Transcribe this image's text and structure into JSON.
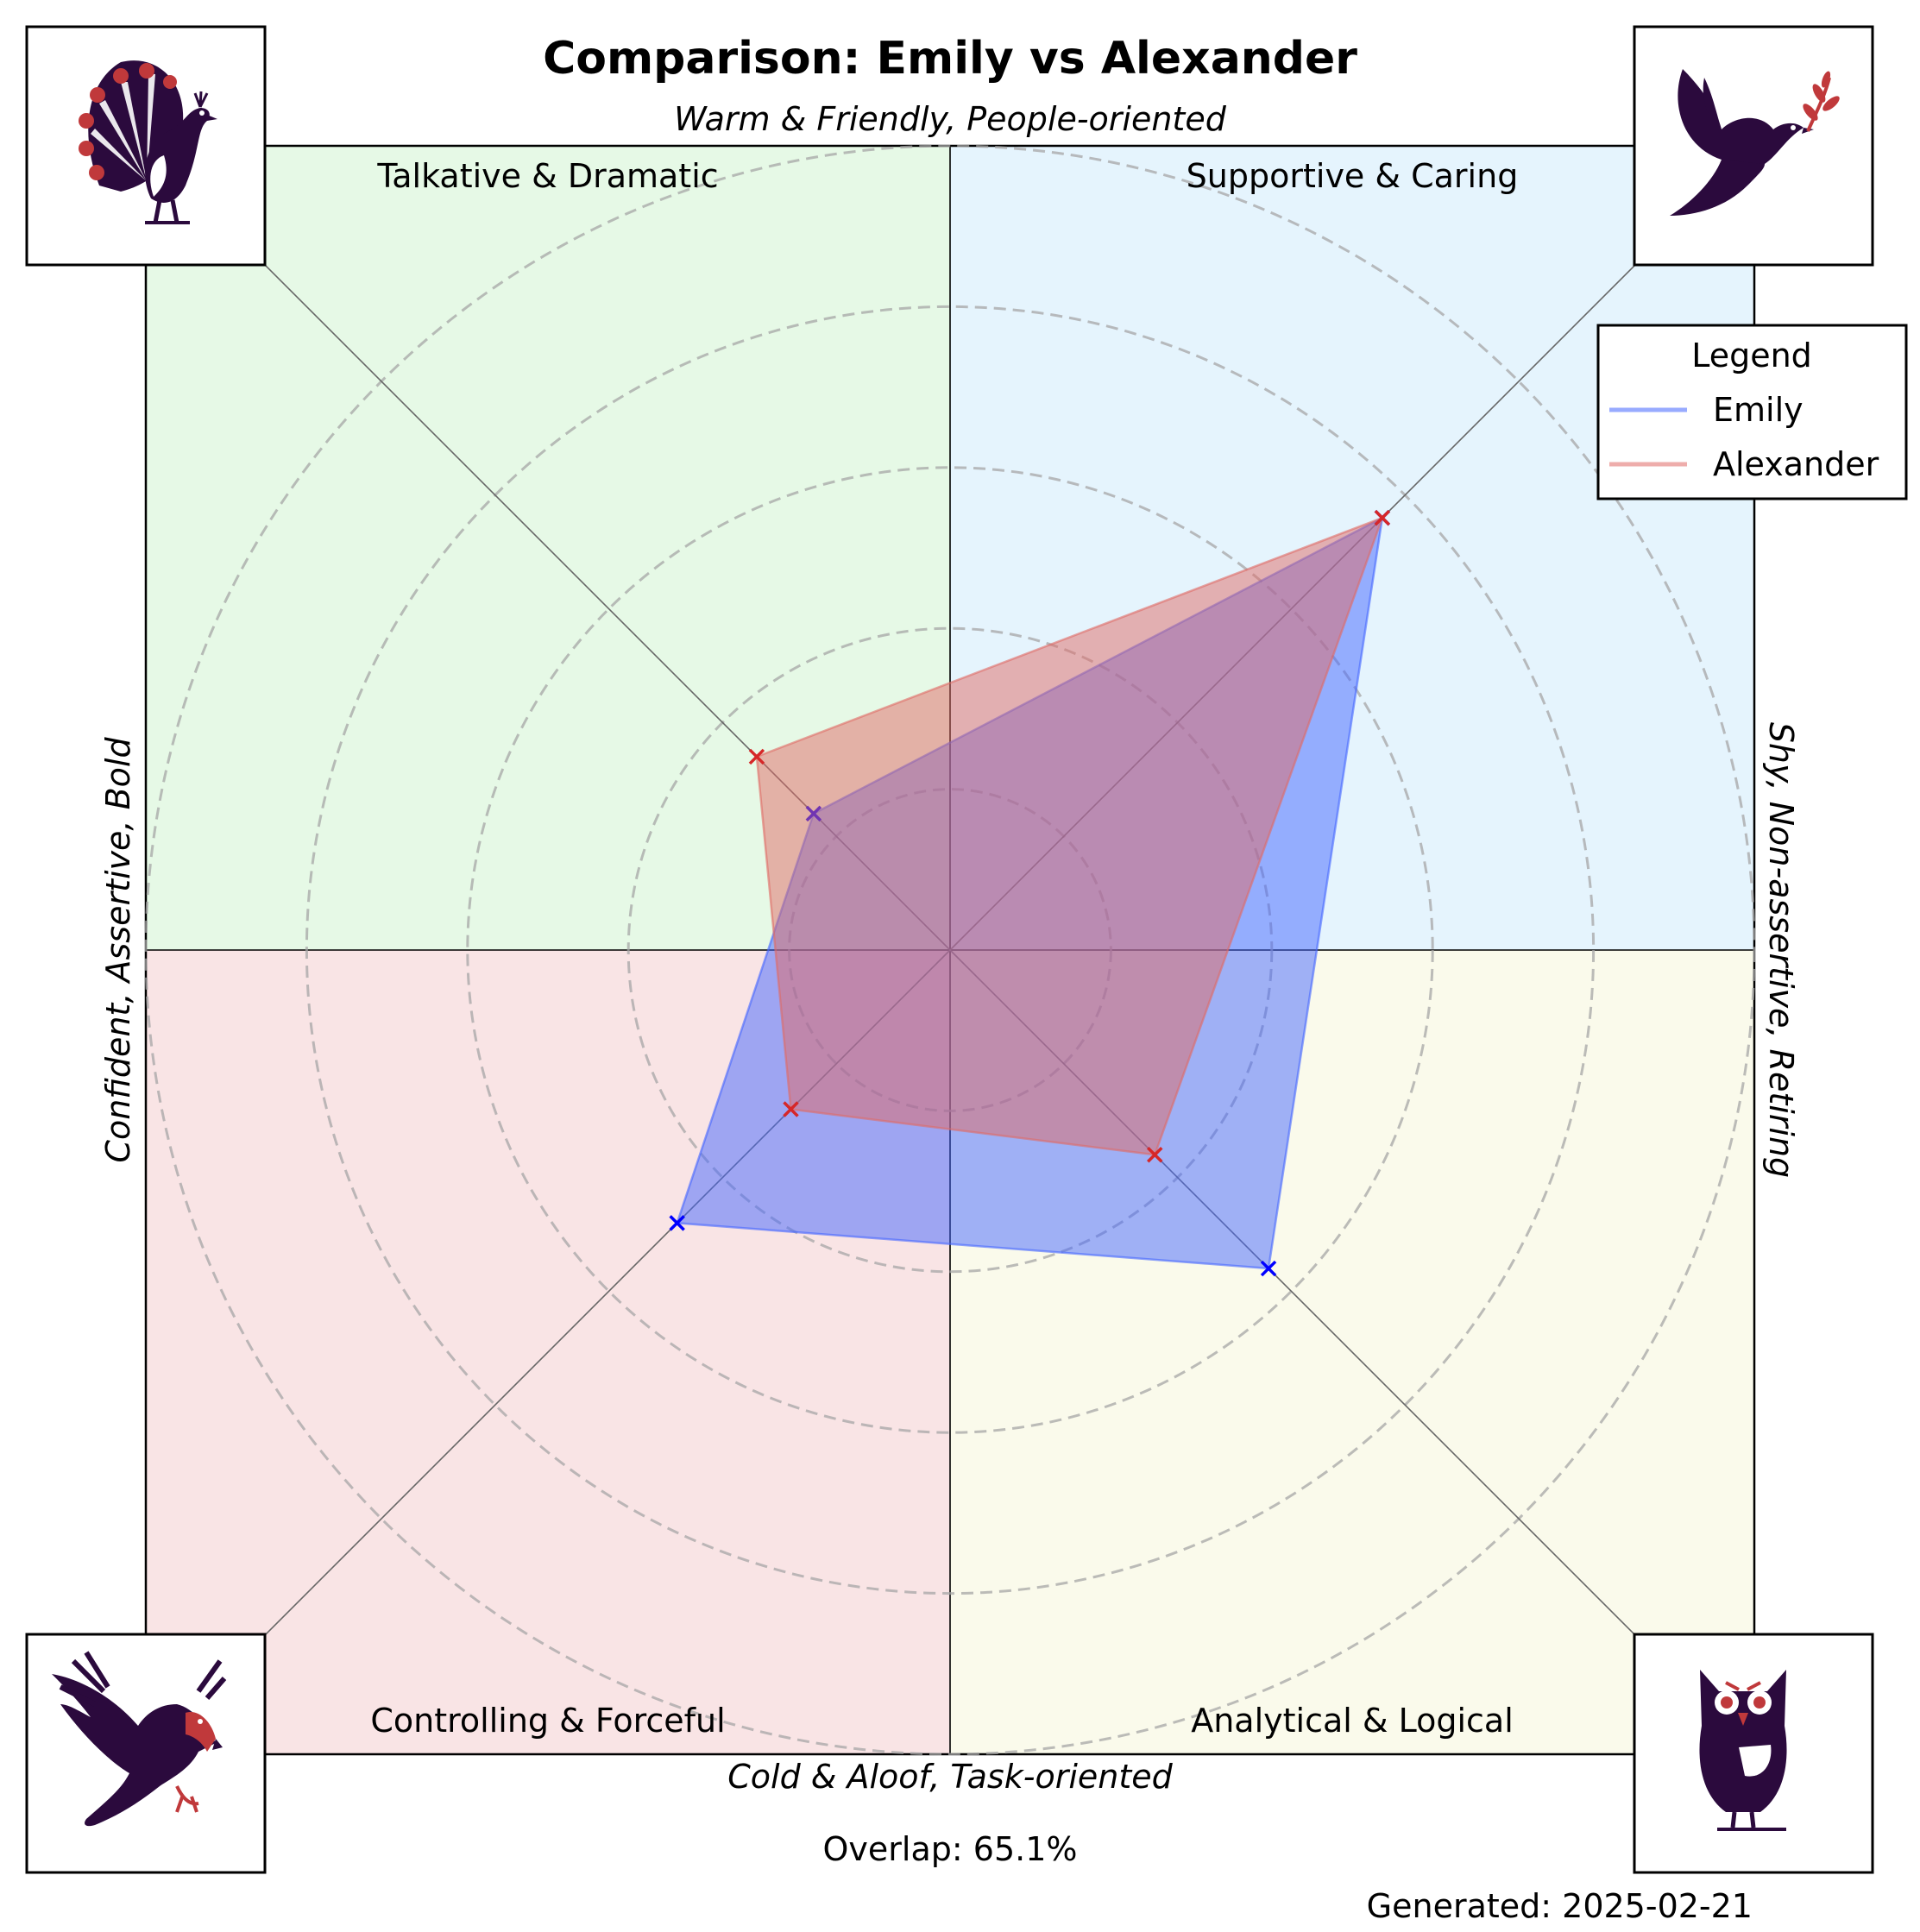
{
  "chart_data": {
    "type": "radar",
    "title": "Comparison: Emily vs Alexander",
    "axis_labels": {
      "top": "Warm & Friendly, People-oriented",
      "bottom": "Cold & Aloof, Task-oriented",
      "left": "Confident, Assertive, Bold",
      "right": "Shy, Non-assertive, Retiring"
    },
    "quadrants": [
      {
        "id": "top-left",
        "label": "Talkative & Dramatic",
        "color": "#e6f9e6",
        "icon": "peacock-icon"
      },
      {
        "id": "top-right",
        "label": "Supportive & Caring",
        "color": "#e5f4fd",
        "icon": "dove-icon"
      },
      {
        "id": "bottom-left",
        "label": "Controlling & Forceful",
        "color": "#f9e4e5",
        "icon": "eagle-icon"
      },
      {
        "id": "bottom-right",
        "label": "Analytical & Logical",
        "color": "#fafaeb",
        "icon": "owl-icon"
      }
    ],
    "axes": [
      "Talkative & Dramatic",
      "Supportive & Caring",
      "Analytical & Logical",
      "Controlling & Forceful"
    ],
    "rlim": [
      0,
      5
    ],
    "rings": [
      1,
      2,
      3,
      4,
      5
    ],
    "grid": true,
    "series": [
      {
        "name": "Emily",
        "color": "#4466ff",
        "marker_color": "#0000ff",
        "values": [
          1.2,
          3.8,
          2.8,
          2.4
        ]
      },
      {
        "name": "Alexander",
        "color": "#e06a66",
        "marker_color": "#d62728",
        "values": [
          1.7,
          3.8,
          1.8,
          1.4
        ]
      }
    ],
    "legend": {
      "title": "Legend",
      "placement": "top-right"
    },
    "colors": {
      "icon_dark": "#2b0a3d",
      "icon_accent": "#c0393b"
    }
  },
  "footer": {
    "overlap": "Overlap: 65.1%",
    "generated": "Generated: 2025-02-21"
  }
}
